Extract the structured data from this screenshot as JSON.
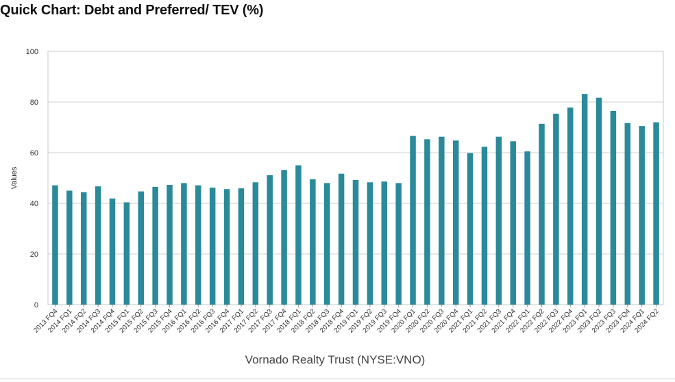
{
  "title": "Quick Chart: Debt and Preferred/ TEV (%)",
  "chart_data": {
    "type": "bar",
    "xlabel": "Vornado Realty Trust (NYSE:VNO)",
    "ylabel": "Values",
    "ylim": [
      0,
      100
    ],
    "yticks": [
      0,
      20,
      40,
      60,
      80,
      100
    ],
    "grid": true,
    "bar_color": "#2a8a9a",
    "categories": [
      "2013 FQ4",
      "2014 FQ1",
      "2014 FQ2",
      "2014 FQ3",
      "2014 FQ4",
      "2015 FQ1",
      "2015 FQ2",
      "2015 FQ3",
      "2015 FQ4",
      "2016 FQ1",
      "2016 FQ2",
      "2016 FQ3",
      "2016 FQ4",
      "2017 FQ1",
      "2017 FQ2",
      "2017 FQ3",
      "2017 FQ4",
      "2018 FQ1",
      "2018 FQ2",
      "2018 FQ3",
      "2018 FQ4",
      "2019 FQ1",
      "2019 FQ2",
      "2019 FQ3",
      "2019 FQ4",
      "2020 FQ1",
      "2020 FQ2",
      "2020 FQ3",
      "2020 FQ4",
      "2021 FQ1",
      "2021 FQ2",
      "2021 FQ3",
      "2021 FQ4",
      "2022 FQ1",
      "2022 FQ2",
      "2022 FQ3",
      "2022 FQ4",
      "2023 FQ1",
      "2023 FQ2",
      "2023 FQ3",
      "2023 FQ4",
      "2024 FQ1",
      "2024 FQ2"
    ],
    "values": [
      47.1,
      45.0,
      44.4,
      46.7,
      41.9,
      40.4,
      44.7,
      46.5,
      47.3,
      48.0,
      47.1,
      46.2,
      45.6,
      45.9,
      48.3,
      51.1,
      53.2,
      55.0,
      49.5,
      48.0,
      51.7,
      49.2,
      48.3,
      48.6,
      48.0,
      66.6,
      65.3,
      66.3,
      64.8,
      59.8,
      62.3,
      66.3,
      64.5,
      60.5,
      71.4,
      75.4,
      77.8,
      83.2,
      81.7,
      76.5,
      71.7,
      70.5,
      72.0
    ]
  }
}
